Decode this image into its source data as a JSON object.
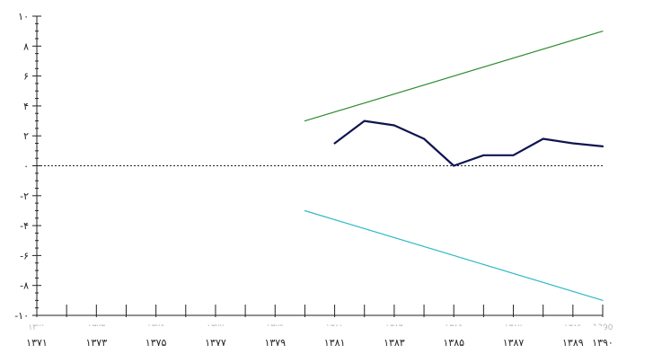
{
  "chart_data": {
    "type": "line",
    "title": "",
    "xlabel": "",
    "ylabel": "",
    "xlim": [
      1371,
      1390
    ],
    "ylim": [
      -10,
      10
    ],
    "grid": false,
    "legend": "none",
    "y_ticks": [
      -10,
      -8,
      -6,
      -4,
      -2,
      0,
      2,
      4,
      6,
      8,
      10
    ],
    "y_tick_labels": [
      "-۱۰",
      "-۸",
      "-۶",
      "-۴",
      "-۲",
      "۰",
      "۲",
      "۴",
      "۶",
      "۸",
      "۱۰"
    ],
    "x_ticks": [
      1371,
      1373,
      1375,
      1377,
      1379,
      1381,
      1383,
      1385,
      1387,
      1389,
      1390
    ],
    "x_tick_labels": [
      "۱۳۷۱",
      "۱۳۷۳",
      "۱۳۷۵",
      "۱۳۷۷",
      "۱۳۷۹",
      "۱۳۸۱",
      "۱۳۸۳",
      "۱۳۸۵",
      "۱۳۸۷",
      "۱۳۸۹",
      "۱۳۹۰"
    ],
    "x_ghost_labels": [
      "۱۳۷۱",
      "۱۳۷۳",
      "۱۳۷۵",
      "۱۳۷۷",
      "۱۳۷۹",
      "۱۳۸۱",
      "۱۳۸۳",
      "۱۳۸۵",
      "۱۳۸۷",
      "۱۳۸۹",
      "1390"
    ],
    "reference_line": {
      "y": 0,
      "style": "dotted",
      "color": "#222222"
    },
    "series": [
      {
        "color": "#2e8b2e",
        "x": [
          1380,
          1390
        ],
        "y": [
          3,
          9
        ]
      },
      {
        "color": "#30b8c8",
        "x": [
          1380,
          1390
        ],
        "y": [
          -3,
          -9
        ]
      },
      {
        "color": "#0f1550",
        "x": [
          1381,
          1382,
          1383,
          1384,
          1385,
          1386,
          1387,
          1388,
          1389,
          1390
        ],
        "y": [
          1.5,
          3.0,
          2.7,
          1.8,
          0.0,
          0.7,
          0.7,
          1.8,
          1.5,
          1.3
        ]
      }
    ]
  }
}
